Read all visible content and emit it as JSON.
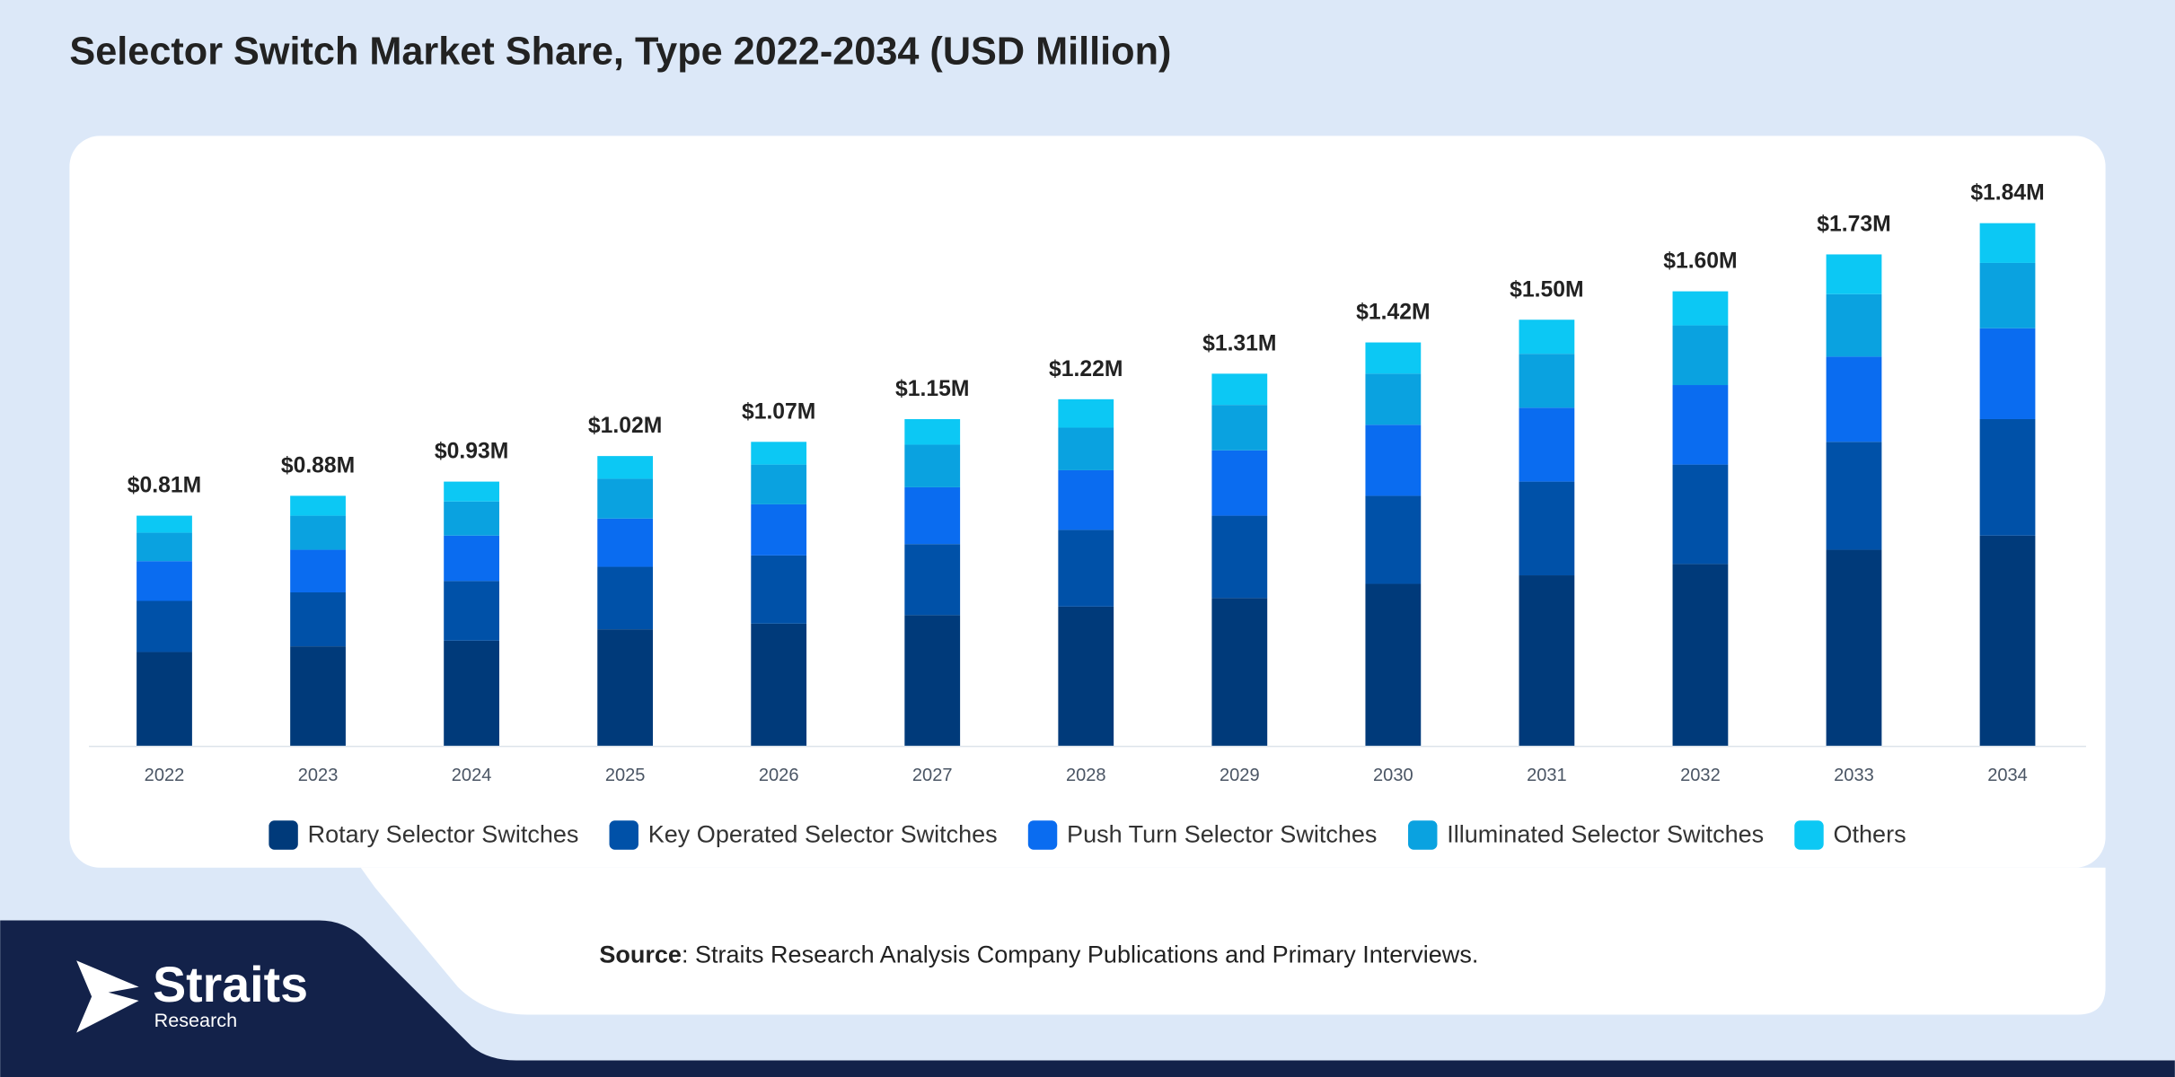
{
  "chart_data": {
    "type": "stacked_bar",
    "title": "Selector Switch Market Share, Type 2022-2034 (USD Million)",
    "categories": [
      "2022",
      "2023",
      "2024",
      "2025",
      "2026",
      "2027",
      "2028",
      "2029",
      "2030",
      "2031",
      "2032",
      "2033",
      "2034"
    ],
    "series": [
      {
        "name": "Rotary Selector Switches",
        "color": "#003a7a",
        "values": [
          0.33,
          0.35,
          0.37,
          0.41,
          0.43,
          0.46,
          0.49,
          0.52,
          0.57,
          0.6,
          0.64,
          0.69,
          0.74
        ]
      },
      {
        "name": "Key Operated Selector Switches",
        "color": "#0051a8",
        "values": [
          0.18,
          0.19,
          0.21,
          0.22,
          0.24,
          0.25,
          0.27,
          0.29,
          0.31,
          0.33,
          0.35,
          0.38,
          0.41
        ]
      },
      {
        "name": "Push Turn Selector Switches",
        "color": "#0a6cf0",
        "values": [
          0.14,
          0.15,
          0.16,
          0.17,
          0.18,
          0.2,
          0.21,
          0.23,
          0.25,
          0.26,
          0.28,
          0.3,
          0.32
        ]
      },
      {
        "name": "Illuminated Selector Switches",
        "color": "#0aa2e0",
        "values": [
          0.1,
          0.12,
          0.12,
          0.14,
          0.14,
          0.15,
          0.15,
          0.16,
          0.18,
          0.19,
          0.21,
          0.22,
          0.23
        ]
      },
      {
        "name": "Others",
        "color": "#0cc8f4",
        "values": [
          0.06,
          0.07,
          0.07,
          0.08,
          0.08,
          0.09,
          0.1,
          0.11,
          0.11,
          0.12,
          0.12,
          0.14,
          0.14
        ]
      }
    ],
    "stack_totals": [
      0.81,
      0.88,
      0.93,
      1.02,
      1.07,
      1.15,
      1.22,
      1.31,
      1.42,
      1.5,
      1.6,
      1.73,
      1.84
    ],
    "stack_total_labels": [
      "$0.81M",
      "$0.88M",
      "$0.93M",
      "$1.02M",
      "$1.07M",
      "$1.15M",
      "$1.22M",
      "$1.31M",
      "$1.42M",
      "$1.50M",
      "$1.60M",
      "$1.73M",
      "$1.84M"
    ],
    "legend": "bottom"
  },
  "source": {
    "label": "Source",
    "text": ": Straits Research Analysis Company Publications and Primary Interviews."
  },
  "logo": {
    "name": "Straits",
    "sub": "Research"
  }
}
